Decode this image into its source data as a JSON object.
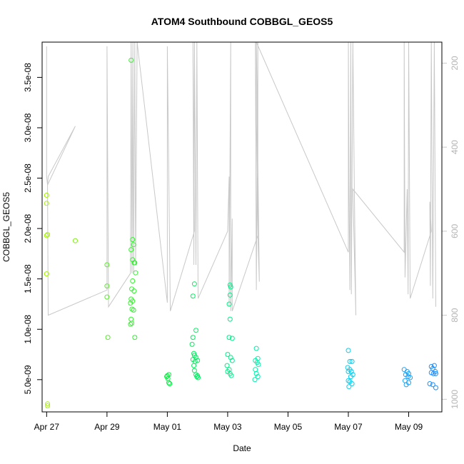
{
  "chart_data": {
    "type": "scatter",
    "title": "ATOM4 Southbound COBBGL_GEOS5",
    "xlabel": "Date",
    "ylabel": "COBBGL_GEOS5",
    "xlim": [
      -0.15,
      13.1
    ],
    "ylim": [
      1.8e-09,
      3.85e-08
    ],
    "x_ticks": [
      {
        "value": 0,
        "label": "Apr 27"
      },
      {
        "value": 2,
        "label": "Apr 29"
      },
      {
        "value": 4,
        "label": "May 01"
      },
      {
        "value": 6,
        "label": "May 03"
      },
      {
        "value": 8,
        "label": "May 05"
      },
      {
        "value": 10,
        "label": "May 07"
      },
      {
        "value": 12,
        "label": "May 09"
      }
    ],
    "y_ticks": [
      {
        "value": 5e-09,
        "label": "5.0e-09"
      },
      {
        "value": 1e-08,
        "label": "1.0e-08"
      },
      {
        "value": 1.5e-08,
        "label": "1.5e-08"
      },
      {
        "value": 2e-08,
        "label": "2.0e-08"
      },
      {
        "value": 2.5e-08,
        "label": "2.5e-08"
      },
      {
        "value": 3e-08,
        "label": "3.0e-08"
      },
      {
        "value": 3.5e-08,
        "label": "3.5e-08"
      }
    ],
    "y2_axis": {
      "lim": [
        1030,
        150
      ],
      "ticks": [
        {
          "value": 200,
          "label": "200"
        },
        {
          "value": 400,
          "label": "400"
        },
        {
          "value": 600,
          "label": "600"
        },
        {
          "value": 800,
          "label": "800"
        },
        {
          "value": 1000,
          "label": "1000"
        }
      ],
      "color": "#c8c8c8"
    },
    "point_color_scale": {
      "start": "#a6f00a",
      "mid1": "#00ee44",
      "mid2": "#00f0e0",
      "end": "#1e90ff",
      "x_range": [
        0,
        12.7
      ]
    },
    "points": [
      [
        0.0,
        2.33e-08
      ],
      [
        0.0,
        2.25e-08
      ],
      [
        0.03,
        1.94e-08
      ],
      [
        0.0,
        1.93e-08
      ],
      [
        0.0,
        1.55e-08
      ],
      [
        0.03,
        2.6e-09
      ],
      [
        0.03,
        2.4e-09
      ],
      [
        0.95,
        1.88e-08
      ],
      [
        2.0,
        1.64e-08
      ],
      [
        2.0,
        1.43e-08
      ],
      [
        2.0,
        1.32e-08
      ],
      [
        2.03,
        9.2e-09
      ],
      [
        2.8,
        3.67e-08
      ],
      [
        2.85,
        1.89e-08
      ],
      [
        2.88,
        1.84e-08
      ],
      [
        2.8,
        1.79e-08
      ],
      [
        2.85,
        1.69e-08
      ],
      [
        2.9,
        1.66e-08
      ],
      [
        2.92,
        1.66e-08
      ],
      [
        2.95,
        1.56e-08
      ],
      [
        2.85,
        1.48e-08
      ],
      [
        2.82,
        1.4e-08
      ],
      [
        2.9,
        1.38e-08
      ],
      [
        2.8,
        1.3e-08
      ],
      [
        2.85,
        1.28e-08
      ],
      [
        2.78,
        1.26e-08
      ],
      [
        2.83,
        1.2e-08
      ],
      [
        2.88,
        1.19e-08
      ],
      [
        2.8,
        1.1e-08
      ],
      [
        2.82,
        1.06e-08
      ],
      [
        2.78,
        1.05e-08
      ],
      [
        2.92,
        9.2e-09
      ],
      [
        4.0,
        5.4e-09
      ],
      [
        4.05,
        5.5e-09
      ],
      [
        3.98,
        5.3e-09
      ],
      [
        4.02,
        5.1e-09
      ],
      [
        4.05,
        4.7e-09
      ],
      [
        4.08,
        4.6e-09
      ],
      [
        4.9,
        1.45e-08
      ],
      [
        4.85,
        1.33e-08
      ],
      [
        4.95,
        9.9e-09
      ],
      [
        4.85,
        9.2e-09
      ],
      [
        4.82,
        8.5e-09
      ],
      [
        4.88,
        7.6e-09
      ],
      [
        4.9,
        7.4e-09
      ],
      [
        4.95,
        7.2e-09
      ],
      [
        4.85,
        7e-09
      ],
      [
        4.92,
        6.8e-09
      ],
      [
        5.0,
        6.9e-09
      ],
      [
        4.88,
        6.4e-09
      ],
      [
        4.9,
        5.9e-09
      ],
      [
        4.95,
        5.5e-09
      ],
      [
        5.0,
        5.4e-09
      ],
      [
        5.02,
        5.2e-09
      ],
      [
        4.98,
        5.3e-09
      ],
      [
        6.08,
        1.44e-08
      ],
      [
        6.1,
        1.42e-08
      ],
      [
        6.08,
        1.34e-08
      ],
      [
        6.05,
        1.25e-08
      ],
      [
        6.08,
        1.1e-08
      ],
      [
        6.05,
        9.2e-09
      ],
      [
        6.15,
        9.1e-09
      ],
      [
        6.0,
        7.5e-09
      ],
      [
        6.1,
        7.2e-09
      ],
      [
        6.15,
        6.9e-09
      ],
      [
        5.98,
        6.4e-09
      ],
      [
        6.05,
        6e-09
      ],
      [
        6.0,
        5.8e-09
      ],
      [
        6.08,
        5.6e-09
      ],
      [
        6.12,
        5.4e-09
      ],
      [
        6.95,
        8.1e-09
      ],
      [
        7.0,
        7.1e-09
      ],
      [
        6.92,
        6.9e-09
      ],
      [
        6.98,
        6.7e-09
      ],
      [
        7.02,
        6.5e-09
      ],
      [
        6.92,
        6e-09
      ],
      [
        6.95,
        5.6e-09
      ],
      [
        7.0,
        5.3e-09
      ],
      [
        6.9,
        5e-09
      ],
      [
        10.0,
        7.9e-09
      ],
      [
        10.05,
        6.8e-09
      ],
      [
        10.12,
        6.8e-09
      ],
      [
        9.98,
        6.2e-09
      ],
      [
        10.05,
        6e-09
      ],
      [
        10.1,
        5.8e-09
      ],
      [
        10.15,
        5.5e-09
      ],
      [
        10.0,
        5.8e-09
      ],
      [
        10.08,
        5.3e-09
      ],
      [
        10.0,
        4.9e-09
      ],
      [
        10.05,
        4.8e-09
      ],
      [
        10.12,
        4.6e-09
      ],
      [
        10.02,
        4.3e-09
      ],
      [
        11.85,
        6e-09
      ],
      [
        11.95,
        5.8e-09
      ],
      [
        12.0,
        5.6e-09
      ],
      [
        11.9,
        5.5e-09
      ],
      [
        11.98,
        5.3e-09
      ],
      [
        12.05,
        5.2e-09
      ],
      [
        11.88,
        4.9e-09
      ],
      [
        12.0,
        4.7e-09
      ],
      [
        11.92,
        4.5e-09
      ],
      [
        12.75,
        6.3e-09
      ],
      [
        12.85,
        6.4e-09
      ],
      [
        12.8,
        6.1e-09
      ],
      [
        12.88,
        5.8e-09
      ],
      [
        12.75,
        5.7e-09
      ],
      [
        12.82,
        5.6e-09
      ],
      [
        12.9,
        5.6e-09
      ],
      [
        12.7,
        4.6e-09
      ],
      [
        12.8,
        4.5e-09
      ],
      [
        12.9,
        4.2e-09
      ]
    ],
    "pressure_profile": [
      [
        0.0,
        160
      ],
      [
        0.0,
        470
      ],
      [
        0.03,
        490
      ],
      [
        0.05,
        470
      ],
      [
        0.95,
        350
      ],
      [
        0.03,
        490
      ],
      [
        0.05,
        800
      ],
      [
        2.0,
        740
      ],
      [
        2.0,
        160
      ],
      [
        2.05,
        780
      ],
      [
        2.78,
        700
      ],
      [
        2.8,
        150
      ],
      [
        2.83,
        700
      ],
      [
        2.86,
        150
      ],
      [
        2.88,
        700
      ],
      [
        2.92,
        150
      ],
      [
        2.95,
        680
      ],
      [
        3.0,
        150
      ],
      [
        4.0,
        770
      ],
      [
        4.0,
        160
      ],
      [
        4.1,
        790
      ],
      [
        4.9,
        600
      ],
      [
        4.85,
        150
      ],
      [
        4.88,
        680
      ],
      [
        4.9,
        150
      ],
      [
        4.95,
        680
      ],
      [
        4.98,
        150
      ],
      [
        5.02,
        760
      ],
      [
        6.0,
        600
      ],
      [
        6.05,
        470
      ],
      [
        6.05,
        780
      ],
      [
        6.1,
        150
      ],
      [
        6.1,
        790
      ],
      [
        6.15,
        570
      ],
      [
        6.15,
        790
      ],
      [
        6.2,
        780
      ],
      [
        7.0,
        610
      ],
      [
        6.92,
        150
      ],
      [
        6.95,
        740
      ],
      [
        7.0,
        150
      ],
      [
        7.0,
        610
      ],
      [
        7.05,
        720
      ],
      [
        6.95,
        150
      ],
      [
        10.0,
        650
      ],
      [
        10.0,
        150
      ],
      [
        10.02,
        480
      ],
      [
        10.05,
        740
      ],
      [
        10.08,
        150
      ],
      [
        10.1,
        750
      ],
      [
        10.15,
        150
      ],
      [
        10.2,
        500
      ],
      [
        10.25,
        800
      ],
      [
        10.15,
        500
      ],
      [
        11.85,
        650
      ],
      [
        11.85,
        150
      ],
      [
        11.88,
        710
      ],
      [
        11.95,
        500
      ],
      [
        11.98,
        750
      ],
      [
        12.0,
        150
      ],
      [
        12.05,
        760
      ],
      [
        12.75,
        600
      ],
      [
        12.7,
        530
      ],
      [
        12.72,
        730
      ],
      [
        12.75,
        150
      ],
      [
        12.8,
        760
      ],
      [
        12.85,
        150
      ],
      [
        12.9,
        780
      ]
    ]
  }
}
